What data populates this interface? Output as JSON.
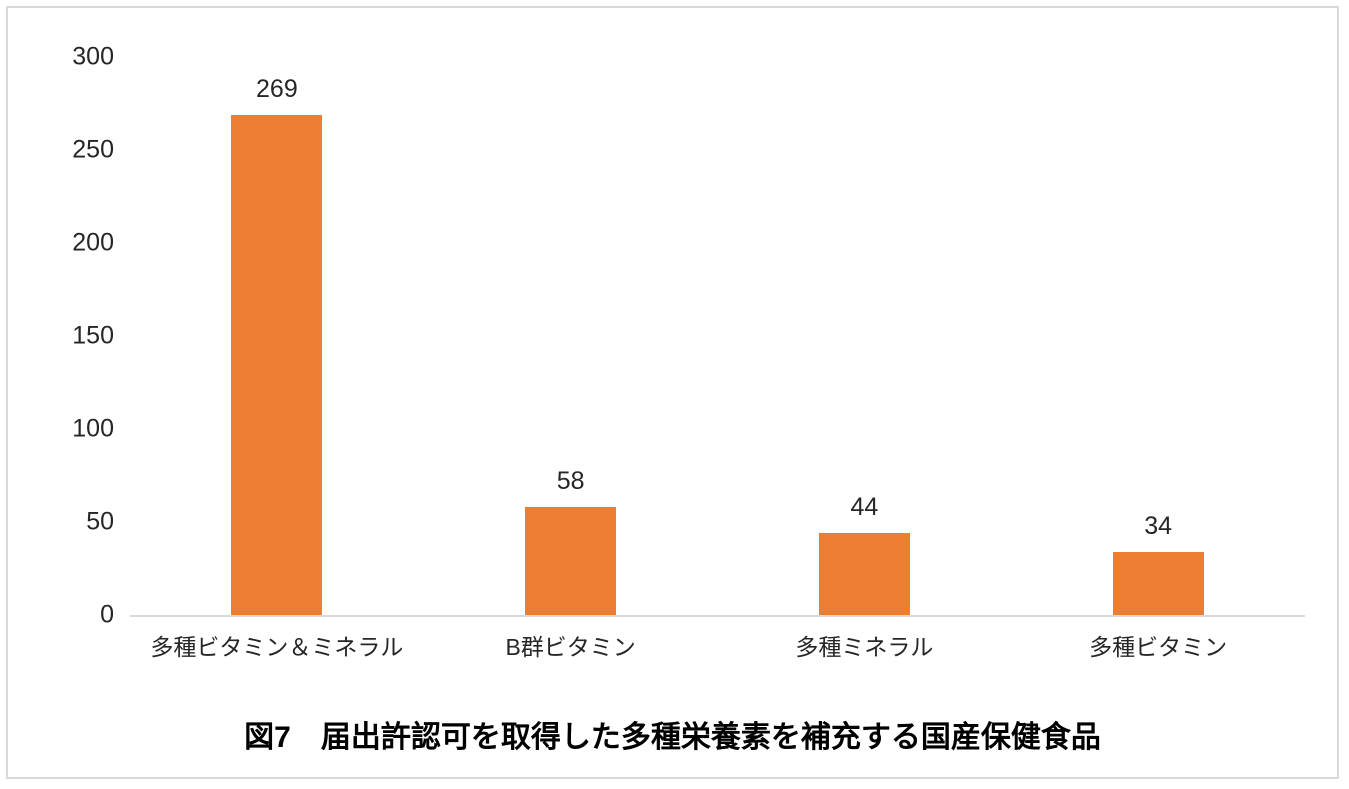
{
  "chart_data": {
    "type": "bar",
    "categories": [
      "多種ビタミン＆ミネラル",
      "B群ビタミン",
      "多種ミネラル",
      "多種ビタミン"
    ],
    "values": [
      269,
      58,
      44,
      34
    ],
    "title": "図7　届出許認可を取得した多種栄養素を補充する国産保健食品",
    "xlabel": "",
    "ylabel": "",
    "ylim": [
      0,
      300
    ],
    "yticks": [
      0,
      50,
      100,
      150,
      200,
      250,
      300
    ],
    "grid": false,
    "value_labels_shown": true,
    "legend": "none",
    "bar_color": "#ED7D31",
    "axis_color": "#D9D9D9",
    "frame_color": "#D9D9D9",
    "label_color": "#262626",
    "title_color": "#000000"
  }
}
